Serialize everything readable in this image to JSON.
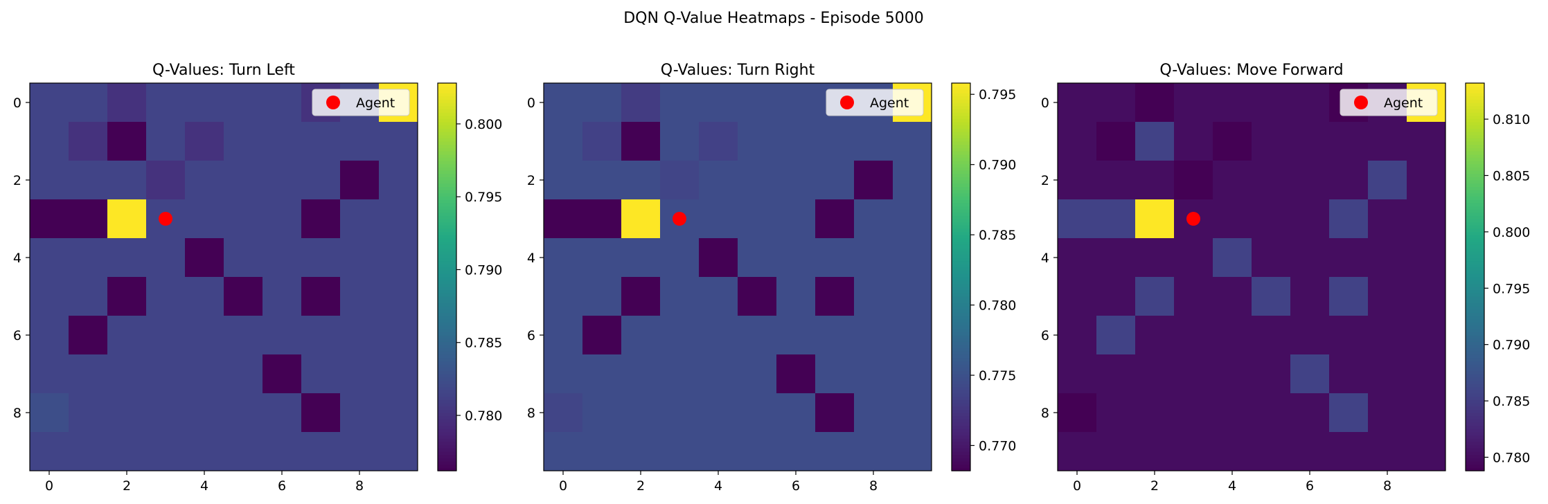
{
  "suptitle": "DQN Q-Value Heatmaps - Episode 5000",
  "colormap": "viridis",
  "chart_data": [
    {
      "type": "heatmap",
      "title": "Q-Values: Turn Left",
      "grid_size": 10,
      "xticks": [
        "0",
        "2",
        "4",
        "6",
        "8"
      ],
      "yticks": [
        "0",
        "2",
        "4",
        "6",
        "8"
      ],
      "colorbar": {
        "min": 0.7762,
        "max": 0.8028,
        "ticks": [
          0.78,
          0.785,
          0.79,
          0.795,
          0.8
        ],
        "tick_labels": [
          "0.780",
          "0.785",
          "0.790",
          "0.795",
          "0.800"
        ]
      },
      "legend": {
        "label": "Agent",
        "position": "upper right"
      },
      "agent": {
        "row": 3,
        "col": 3
      },
      "values": [
        [
          0.7815,
          0.7815,
          0.78,
          0.7815,
          0.7815,
          0.7815,
          0.7815,
          0.78,
          0.7815,
          0.8028
        ],
        [
          0.7815,
          0.78,
          0.7762,
          0.7815,
          0.78,
          0.7815,
          0.7815,
          0.7815,
          0.7815,
          0.7815
        ],
        [
          0.7815,
          0.7815,
          0.7815,
          0.78,
          0.7815,
          0.7815,
          0.7815,
          0.7815,
          0.7762,
          0.7815
        ],
        [
          0.7762,
          0.7762,
          0.8028,
          0.7815,
          0.7815,
          0.7815,
          0.7815,
          0.7762,
          0.7815,
          0.7815
        ],
        [
          0.7815,
          0.7815,
          0.7815,
          0.7815,
          0.7762,
          0.7815,
          0.7815,
          0.7815,
          0.7815,
          0.7815
        ],
        [
          0.7815,
          0.7815,
          0.7762,
          0.7815,
          0.7815,
          0.7762,
          0.7815,
          0.7762,
          0.7815,
          0.7815
        ],
        [
          0.7815,
          0.7762,
          0.7815,
          0.7815,
          0.7815,
          0.7815,
          0.7815,
          0.7815,
          0.7815,
          0.7815
        ],
        [
          0.7815,
          0.7815,
          0.7815,
          0.7815,
          0.7815,
          0.7815,
          0.7762,
          0.7815,
          0.7815,
          0.7815
        ],
        [
          0.7825,
          0.7815,
          0.7815,
          0.7815,
          0.7815,
          0.7815,
          0.7815,
          0.7762,
          0.7815,
          0.7815
        ],
        [
          0.7815,
          0.7815,
          0.7815,
          0.7815,
          0.7815,
          0.7815,
          0.7815,
          0.7815,
          0.7815,
          0.7815
        ]
      ]
    },
    {
      "type": "heatmap",
      "title": "Q-Values: Turn Right",
      "grid_size": 10,
      "xticks": [
        "0",
        "2",
        "4",
        "6",
        "8"
      ],
      "yticks": [
        "0",
        "2",
        "4",
        "6",
        "8"
      ],
      "colorbar": {
        "min": 0.7682,
        "max": 0.7958,
        "ticks": [
          0.77,
          0.775,
          0.78,
          0.785,
          0.79,
          0.795
        ],
        "tick_labels": [
          "0.770",
          "0.775",
          "0.780",
          "0.785",
          "0.790",
          "0.795"
        ]
      },
      "legend": {
        "label": "Agent",
        "position": "upper right"
      },
      "agent": {
        "row": 3,
        "col": 3
      },
      "values": [
        [
          0.7745,
          0.7745,
          0.773,
          0.7745,
          0.7745,
          0.7745,
          0.7745,
          0.7745,
          0.7745,
          0.7958
        ],
        [
          0.7745,
          0.7735,
          0.7682,
          0.7745,
          0.7735,
          0.7745,
          0.7745,
          0.7745,
          0.7745,
          0.7745
        ],
        [
          0.7745,
          0.7745,
          0.7745,
          0.7738,
          0.7745,
          0.7745,
          0.7745,
          0.7745,
          0.7682,
          0.7745
        ],
        [
          0.7682,
          0.7682,
          0.7958,
          0.7745,
          0.7745,
          0.7745,
          0.7745,
          0.7682,
          0.7745,
          0.7745
        ],
        [
          0.7745,
          0.7745,
          0.7745,
          0.7745,
          0.7682,
          0.7745,
          0.7745,
          0.7745,
          0.7745,
          0.7745
        ],
        [
          0.7745,
          0.7745,
          0.7682,
          0.7745,
          0.7745,
          0.7682,
          0.7745,
          0.7682,
          0.7745,
          0.7745
        ],
        [
          0.7745,
          0.7682,
          0.7745,
          0.7745,
          0.7745,
          0.7745,
          0.7745,
          0.7745,
          0.7745,
          0.7745
        ],
        [
          0.7745,
          0.7745,
          0.7745,
          0.7745,
          0.7745,
          0.7745,
          0.7682,
          0.7745,
          0.7745,
          0.7745
        ],
        [
          0.7738,
          0.7745,
          0.7745,
          0.7745,
          0.7745,
          0.7745,
          0.7745,
          0.7682,
          0.7745,
          0.7745
        ],
        [
          0.7745,
          0.7745,
          0.7745,
          0.7745,
          0.7745,
          0.7745,
          0.7745,
          0.7745,
          0.7745,
          0.7745
        ]
      ]
    },
    {
      "type": "heatmap",
      "title": "Q-Values: Move Forward",
      "grid_size": 10,
      "xticks": [
        "0",
        "2",
        "4",
        "6",
        "8"
      ],
      "yticks": [
        "0",
        "2",
        "4",
        "6",
        "8"
      ],
      "colorbar": {
        "min": 0.7788,
        "max": 0.8132,
        "ticks": [
          0.78,
          0.785,
          0.79,
          0.795,
          0.8,
          0.805,
          0.81
        ],
        "tick_labels": [
          "0.780",
          "0.785",
          "0.790",
          "0.795",
          "0.800",
          "0.805",
          "0.810"
        ]
      },
      "legend": {
        "label": "Agent",
        "position": "upper right"
      },
      "agent": {
        "row": 3,
        "col": 3
      },
      "values": [
        [
          0.78,
          0.78,
          0.7788,
          0.78,
          0.78,
          0.78,
          0.78,
          0.7788,
          0.78,
          0.8132
        ],
        [
          0.78,
          0.7788,
          0.7855,
          0.78,
          0.7788,
          0.78,
          0.78,
          0.78,
          0.78,
          0.78
        ],
        [
          0.78,
          0.78,
          0.78,
          0.7788,
          0.78,
          0.78,
          0.78,
          0.78,
          0.7855,
          0.78
        ],
        [
          0.7855,
          0.7855,
          0.8132,
          0.78,
          0.78,
          0.78,
          0.78,
          0.7855,
          0.78,
          0.78
        ],
        [
          0.78,
          0.78,
          0.78,
          0.78,
          0.7855,
          0.78,
          0.78,
          0.78,
          0.78,
          0.78
        ],
        [
          0.78,
          0.78,
          0.7855,
          0.78,
          0.78,
          0.7855,
          0.78,
          0.7855,
          0.78,
          0.78
        ],
        [
          0.78,
          0.7855,
          0.78,
          0.78,
          0.78,
          0.78,
          0.78,
          0.78,
          0.78,
          0.78
        ],
        [
          0.78,
          0.78,
          0.78,
          0.78,
          0.78,
          0.78,
          0.7855,
          0.78,
          0.78,
          0.78
        ],
        [
          0.7788,
          0.78,
          0.78,
          0.78,
          0.78,
          0.78,
          0.78,
          0.7855,
          0.78,
          0.78
        ],
        [
          0.78,
          0.78,
          0.78,
          0.78,
          0.78,
          0.78,
          0.78,
          0.78,
          0.78,
          0.78
        ]
      ]
    }
  ]
}
